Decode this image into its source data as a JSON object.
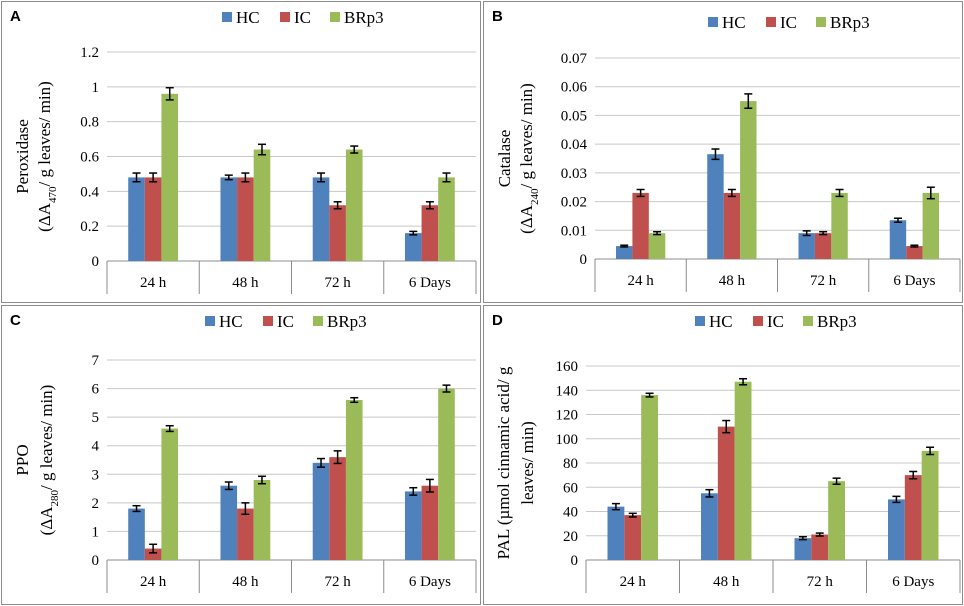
{
  "colors": {
    "HC": "#4f81bd",
    "IC": "#c0504d",
    "BRp3": "#9bbb59"
  },
  "chart_data": [
    {
      "panel": "A",
      "type": "bar",
      "categories": [
        "24 h",
        "48 h",
        "72 h",
        "6 Days"
      ],
      "series": [
        {
          "name": "HC",
          "values": [
            0.48,
            0.48,
            0.48,
            0.16
          ],
          "errors": [
            0.025,
            0.013,
            0.025,
            0.01
          ]
        },
        {
          "name": "IC",
          "values": [
            0.48,
            0.48,
            0.32,
            0.32
          ],
          "errors": [
            0.025,
            0.025,
            0.02,
            0.02
          ]
        },
        {
          "name": "BRp3",
          "values": [
            0.96,
            0.64,
            0.64,
            0.48
          ],
          "errors": [
            0.035,
            0.03,
            0.02,
            0.025
          ]
        }
      ],
      "ylabel_line1": "Peroxidase",
      "ylabel_line2_pre": "(ΔA",
      "ylabel_sub": "470",
      "ylabel_line2_post": "/ g leaves/ min)",
      "ylim": [
        0,
        1.2
      ],
      "yticks": [
        0,
        0.2,
        0.4,
        0.6,
        0.8,
        1,
        1.2
      ],
      "ytick_labels": [
        "0",
        "0.2",
        "0.4",
        "0.6",
        "0.8",
        "1",
        "1.2"
      ],
      "legend": "top",
      "grid": true
    },
    {
      "panel": "B",
      "type": "bar",
      "categories": [
        "24 h",
        "48 h",
        "72 h",
        "6 Days"
      ],
      "series": [
        {
          "name": "HC",
          "values": [
            0.0045,
            0.0365,
            0.009,
            0.0135
          ],
          "errors": [
            0.0003,
            0.0018,
            0.0008,
            0.0007
          ]
        },
        {
          "name": "IC",
          "values": [
            0.023,
            0.023,
            0.009,
            0.0045
          ],
          "errors": [
            0.0012,
            0.0012,
            0.0005,
            0.0003
          ]
        },
        {
          "name": "BRp3",
          "values": [
            0.009,
            0.055,
            0.023,
            0.023
          ],
          "errors": [
            0.0005,
            0.0025,
            0.0012,
            0.002
          ]
        }
      ],
      "ylabel_line1": "Catalase",
      "ylabel_line2_pre": "(ΔA",
      "ylabel_sub": "240",
      "ylabel_line2_post": "/ g leaves/ min)",
      "ylim": [
        0,
        0.07
      ],
      "yticks": [
        0,
        0.01,
        0.02,
        0.03,
        0.04,
        0.05,
        0.06,
        0.07
      ],
      "ytick_labels": [
        "0",
        "0.01",
        "0.02",
        "0.03",
        "0.04",
        "0.05",
        "0.06",
        "0.07"
      ],
      "legend": "top",
      "grid": true
    },
    {
      "panel": "C",
      "type": "bar",
      "categories": [
        "24 h",
        "48 h",
        "72 h",
        "6 Days"
      ],
      "series": [
        {
          "name": "HC",
          "values": [
            1.8,
            2.6,
            3.4,
            2.4
          ],
          "errors": [
            0.1,
            0.13,
            0.15,
            0.13
          ]
        },
        {
          "name": "IC",
          "values": [
            0.4,
            1.8,
            3.6,
            2.6
          ],
          "errors": [
            0.15,
            0.2,
            0.22,
            0.22
          ]
        },
        {
          "name": "BRp3",
          "values": [
            4.6,
            2.8,
            5.6,
            6.0
          ],
          "errors": [
            0.1,
            0.13,
            0.08,
            0.12
          ]
        }
      ],
      "ylabel_line1": "PPO",
      "ylabel_line2_pre": "(ΔA",
      "ylabel_sub": "280",
      "ylabel_line2_post": "/ g leaves/ min)",
      "ylim": [
        0,
        7
      ],
      "yticks": [
        0,
        1,
        2,
        3,
        4,
        5,
        6,
        7
      ],
      "ytick_labels": [
        "0",
        "1",
        "2",
        "3",
        "4",
        "5",
        "6",
        "7"
      ],
      "legend": "top",
      "grid": true
    },
    {
      "panel": "D",
      "type": "bar",
      "categories": [
        "24 h",
        "48 h",
        "72 h",
        "6 Days"
      ],
      "series": [
        {
          "name": "HC",
          "values": [
            44,
            55,
            18,
            50
          ],
          "errors": [
            2.5,
            3,
            1.2,
            2.5
          ]
        },
        {
          "name": "IC",
          "values": [
            37,
            110,
            21,
            70
          ],
          "errors": [
            1.5,
            5,
            1.2,
            3
          ]
        },
        {
          "name": "BRp3",
          "values": [
            136,
            147,
            65,
            90
          ],
          "errors": [
            1.5,
            2.5,
            2.5,
            3
          ]
        }
      ],
      "ylabel_line1": "PAL (µmol cinnamic acid/ g",
      "ylabel_line2_pre": "leaves/ min)",
      "ylabel_sub": "",
      "ylabel_line2_post": "",
      "ylim": [
        0,
        160
      ],
      "yticks": [
        0,
        20,
        40,
        60,
        80,
        100,
        120,
        140,
        160
      ],
      "ytick_labels": [
        "0",
        "20",
        "40",
        "60",
        "80",
        "100",
        "120",
        "140",
        "160"
      ],
      "legend": "top",
      "grid": true
    }
  ]
}
